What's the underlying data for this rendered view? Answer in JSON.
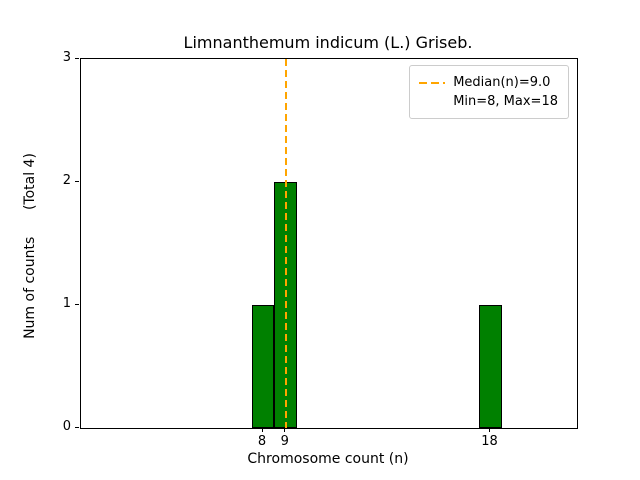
{
  "chart_data": {
    "type": "bar",
    "title": "Limnanthemum indicum (L.) Griseb.",
    "xlabel": "Chromosome count (n)",
    "ylabel": "Num of counts      (Total 4)",
    "categories": [
      8,
      9,
      18
    ],
    "values": [
      1,
      2,
      1
    ],
    "bar_width": 1,
    "bar_color": "#008000",
    "bar_edge_color": "#000000",
    "xlim": [
      0,
      21.8
    ],
    "ylim": [
      0,
      3
    ],
    "x_ticks": [
      8,
      9,
      18
    ],
    "y_ticks": [
      0,
      1,
      2,
      3
    ],
    "grid": false,
    "median_line": {
      "x": 9.0,
      "color": "#FFA500",
      "style": "dashed"
    },
    "legend": {
      "position": "upper right",
      "entries": [
        "Median(n)=9.0",
        "Min=8, Max=18"
      ]
    }
  }
}
